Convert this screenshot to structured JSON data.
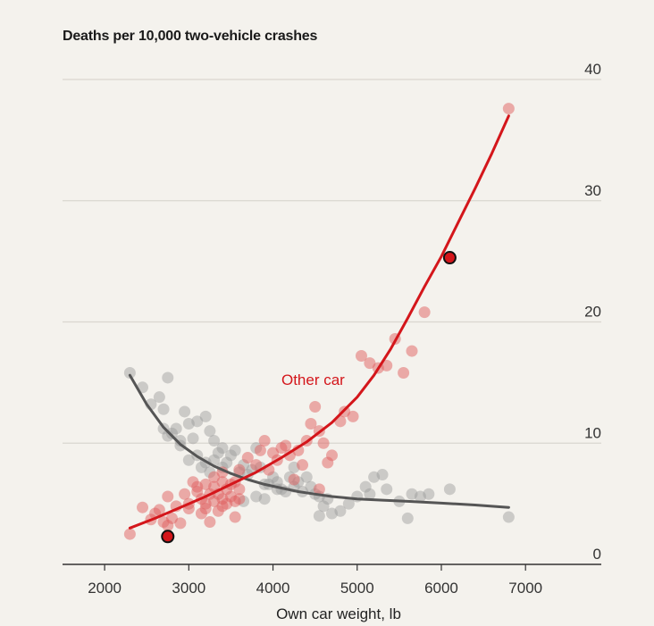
{
  "chart_data": {
    "type": "scatter",
    "title": "Deaths per 10,000 two-vehicle crashes",
    "xlabel": "Own car weight, lb",
    "ylabel": "",
    "xlim": [
      1500,
      7900
    ],
    "ylim": [
      0,
      40
    ],
    "xticks": [
      2000,
      3000,
      4000,
      5000,
      6000,
      7000
    ],
    "yticks": [
      0,
      10,
      20,
      30,
      40
    ],
    "grid": "horizontal",
    "colors": {
      "own_car": "#9a9a9a",
      "own_car_line": "#555555",
      "other_car": "#e06060",
      "other_car_line": "#d4161b",
      "grid": "#d9d6cf",
      "axis": "#333333"
    },
    "series": [
      {
        "name": "",
        "key": "own_car",
        "points": [
          [
            2300,
            15.8
          ],
          [
            2450,
            14.6
          ],
          [
            2550,
            13.2
          ],
          [
            2650,
            13.8
          ],
          [
            2700,
            12.8
          ],
          [
            2750,
            15.4
          ],
          [
            2700,
            11.2
          ],
          [
            2750,
            10.6
          ],
          [
            2800,
            10.8
          ],
          [
            2850,
            11.2
          ],
          [
            2900,
            10.2
          ],
          [
            2950,
            12.6
          ],
          [
            3000,
            11.6
          ],
          [
            3050,
            10.4
          ],
          [
            3100,
            11.8
          ],
          [
            3200,
            12.2
          ],
          [
            3250,
            11.0
          ],
          [
            3300,
            10.2
          ],
          [
            2900,
            9.8
          ],
          [
            3000,
            8.6
          ],
          [
            3100,
            9.0
          ],
          [
            3150,
            8.0
          ],
          [
            3200,
            8.4
          ],
          [
            3250,
            7.6
          ],
          [
            3300,
            8.6
          ],
          [
            3350,
            9.2
          ],
          [
            3400,
            8.0
          ],
          [
            3400,
            9.6
          ],
          [
            3450,
            8.4
          ],
          [
            3500,
            9.0
          ],
          [
            3550,
            9.4
          ],
          [
            3600,
            7.6
          ],
          [
            3650,
            8.2
          ],
          [
            3700,
            7.4
          ],
          [
            3750,
            7.8
          ],
          [
            3800,
            9.6
          ],
          [
            3850,
            8.0
          ],
          [
            3900,
            6.6
          ],
          [
            3950,
            6.6
          ],
          [
            4000,
            7.2
          ],
          [
            4050,
            6.8
          ],
          [
            4100,
            6.2
          ],
          [
            4150,
            6.0
          ],
          [
            4200,
            7.2
          ],
          [
            4250,
            6.4
          ],
          [
            4300,
            6.8
          ],
          [
            4350,
            6.0
          ],
          [
            4400,
            7.2
          ],
          [
            4450,
            6.4
          ],
          [
            4500,
            5.8
          ],
          [
            4550,
            5.6
          ],
          [
            4600,
            4.8
          ],
          [
            4650,
            5.4
          ],
          [
            4700,
            4.2
          ],
          [
            4800,
            4.4
          ],
          [
            4900,
            5.0
          ],
          [
            5000,
            5.6
          ],
          [
            5100,
            6.4
          ],
          [
            5150,
            5.8
          ],
          [
            5200,
            7.2
          ],
          [
            5300,
            7.4
          ],
          [
            5350,
            6.2
          ],
          [
            5500,
            5.2
          ],
          [
            5600,
            3.8
          ],
          [
            5650,
            5.8
          ],
          [
            5750,
            5.6
          ],
          [
            5850,
            5.8
          ],
          [
            6100,
            6.2
          ],
          [
            6800,
            3.9
          ],
          [
            3800,
            5.6
          ],
          [
            3900,
            5.4
          ],
          [
            4050,
            6.2
          ],
          [
            4550,
            4.0
          ],
          [
            4250,
            8.0
          ],
          [
            3650,
            5.2
          ]
        ],
        "curve": [
          [
            2300,
            15.6
          ],
          [
            2500,
            13.2
          ],
          [
            2700,
            11.3
          ],
          [
            2900,
            9.9
          ],
          [
            3100,
            8.9
          ],
          [
            3300,
            8.1
          ],
          [
            3500,
            7.5
          ],
          [
            3700,
            7.0
          ],
          [
            3900,
            6.6
          ],
          [
            4100,
            6.3
          ],
          [
            4300,
            6.0
          ],
          [
            4500,
            5.8
          ],
          [
            4700,
            5.6
          ],
          [
            5000,
            5.4
          ],
          [
            5300,
            5.3
          ],
          [
            5600,
            5.2
          ],
          [
            6000,
            5.05
          ],
          [
            6400,
            4.9
          ],
          [
            6800,
            4.7
          ]
        ],
        "marker": null
      },
      {
        "name": "Other car",
        "key": "other_car",
        "points": [
          [
            2300,
            2.5
          ],
          [
            2450,
            4.7
          ],
          [
            2550,
            3.7
          ],
          [
            2600,
            4.2
          ],
          [
            2650,
            4.5
          ],
          [
            2700,
            3.5
          ],
          [
            2750,
            3.2
          ],
          [
            2800,
            3.8
          ],
          [
            2850,
            4.8
          ],
          [
            2900,
            3.4
          ],
          [
            2950,
            5.8
          ],
          [
            3000,
            4.6
          ],
          [
            3050,
            6.8
          ],
          [
            3100,
            6.0
          ],
          [
            3150,
            5.4
          ],
          [
            3200,
            6.6
          ],
          [
            3250,
            3.5
          ],
          [
            3300,
            5.2
          ],
          [
            3350,
            5.8
          ],
          [
            3400,
            4.8
          ],
          [
            3450,
            6.2
          ],
          [
            3500,
            5.6
          ],
          [
            3550,
            6.8
          ],
          [
            3600,
            6.2
          ],
          [
            3300,
            7.2
          ],
          [
            3400,
            7.6
          ],
          [
            3500,
            6.6
          ],
          [
            3600,
            7.8
          ],
          [
            3700,
            8.8
          ],
          [
            3800,
            8.2
          ],
          [
            3850,
            9.4
          ],
          [
            3900,
            10.2
          ],
          [
            3950,
            7.8
          ],
          [
            4000,
            9.2
          ],
          [
            4050,
            8.6
          ],
          [
            4100,
            9.6
          ],
          [
            4150,
            9.8
          ],
          [
            4200,
            9.0
          ],
          [
            4300,
            9.4
          ],
          [
            4350,
            8.2
          ],
          [
            4400,
            10.2
          ],
          [
            4450,
            11.6
          ],
          [
            4500,
            13.0
          ],
          [
            4550,
            11.0
          ],
          [
            4600,
            10.0
          ],
          [
            4650,
            8.4
          ],
          [
            4700,
            9.0
          ],
          [
            4800,
            11.8
          ],
          [
            4850,
            12.6
          ],
          [
            4950,
            12.2
          ],
          [
            5050,
            17.2
          ],
          [
            5150,
            16.6
          ],
          [
            5250,
            16.2
          ],
          [
            5350,
            16.4
          ],
          [
            5450,
            18.6
          ],
          [
            5550,
            15.8
          ],
          [
            5650,
            17.6
          ],
          [
            5800,
            20.8
          ],
          [
            6800,
            37.6
          ],
          [
            3150,
            4.2
          ],
          [
            3250,
            5.8
          ],
          [
            3350,
            4.4
          ],
          [
            3450,
            5.0
          ],
          [
            3550,
            3.9
          ],
          [
            3600,
            5.4
          ],
          [
            3200,
            5.0
          ],
          [
            3300,
            6.4
          ],
          [
            3400,
            6.8
          ],
          [
            3550,
            5.2
          ],
          [
            2750,
            5.6
          ],
          [
            3000,
            5.0
          ],
          [
            3100,
            6.4
          ],
          [
            3200,
            4.6
          ],
          [
            3400,
            5.4
          ],
          [
            4250,
            7.0
          ],
          [
            4550,
            6.2
          ]
        ],
        "curve": [
          [
            2300,
            3.0
          ],
          [
            2600,
            3.8
          ],
          [
            2900,
            4.7
          ],
          [
            3200,
            5.6
          ],
          [
            3500,
            6.6
          ],
          [
            3800,
            7.6
          ],
          [
            4100,
            8.8
          ],
          [
            4400,
            10.1
          ],
          [
            4700,
            11.7
          ],
          [
            5000,
            13.8
          ],
          [
            5200,
            15.6
          ],
          [
            5400,
            17.8
          ],
          [
            5600,
            20.3
          ],
          [
            5800,
            22.9
          ],
          [
            6000,
            25.4
          ],
          [
            6200,
            28.2
          ],
          [
            6400,
            31.0
          ],
          [
            6600,
            33.9
          ],
          [
            6800,
            37.0
          ]
        ],
        "marker": [
          [
            2750,
            2.3
          ],
          [
            6100,
            25.3
          ]
        ]
      }
    ],
    "label_other_car": "Other car"
  }
}
